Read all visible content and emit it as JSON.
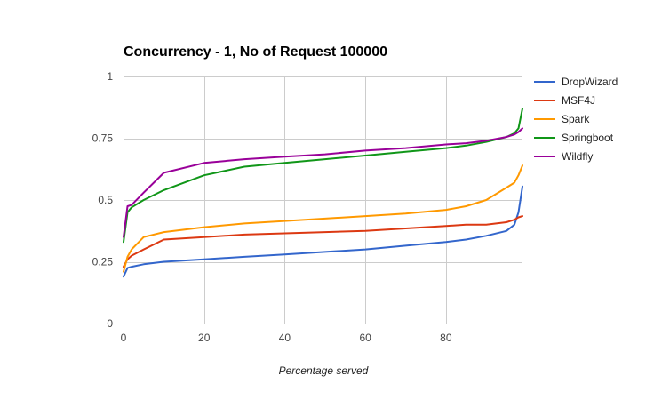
{
  "chart_data": {
    "type": "line",
    "title": "Concurrency - 1, No of Request 100000",
    "xlabel": "Percentage served",
    "ylabel": "",
    "xlim": [
      0,
      99
    ],
    "ylim": [
      0,
      1
    ],
    "x_ticks": [
      "0",
      "20",
      "40",
      "60",
      "80"
    ],
    "y_ticks": [
      "0",
      "0.25",
      "0.5",
      "0.75",
      "1"
    ],
    "x_tick_values": [
      0,
      20,
      40,
      60,
      80
    ],
    "y_tick_values": [
      0,
      0.25,
      0.5,
      0.75,
      1
    ],
    "grid": true,
    "legend_position": "right",
    "x": [
      0,
      1,
      2,
      5,
      10,
      20,
      30,
      40,
      50,
      60,
      70,
      80,
      85,
      90,
      95,
      97,
      98,
      99
    ],
    "series": [
      {
        "name": "DropWizard",
        "color": "#3366cc",
        "values": [
          0.19,
          0.225,
          0.23,
          0.24,
          0.25,
          0.26,
          0.27,
          0.28,
          0.29,
          0.3,
          0.315,
          0.33,
          0.34,
          0.355,
          0.375,
          0.4,
          0.45,
          0.555
        ]
      },
      {
        "name": "MSF4J",
        "color": "#dc3912",
        "values": [
          0.23,
          0.26,
          0.275,
          0.3,
          0.34,
          0.35,
          0.36,
          0.365,
          0.37,
          0.375,
          0.385,
          0.395,
          0.4,
          0.4,
          0.41,
          0.42,
          0.43,
          0.435
        ]
      },
      {
        "name": "Spark",
        "color": "#ff9900",
        "values": [
          0.21,
          0.27,
          0.3,
          0.35,
          0.37,
          0.39,
          0.405,
          0.415,
          0.425,
          0.435,
          0.445,
          0.46,
          0.475,
          0.5,
          0.55,
          0.57,
          0.6,
          0.64
        ]
      },
      {
        "name": "Springboot",
        "color": "#109618",
        "values": [
          0.33,
          0.45,
          0.47,
          0.5,
          0.54,
          0.6,
          0.635,
          0.65,
          0.665,
          0.68,
          0.695,
          0.71,
          0.72,
          0.735,
          0.755,
          0.77,
          0.79,
          0.87
        ]
      },
      {
        "name": "Wildfly",
        "color": "#990099",
        "values": [
          0.35,
          0.475,
          0.48,
          0.53,
          0.61,
          0.65,
          0.665,
          0.675,
          0.685,
          0.7,
          0.71,
          0.725,
          0.73,
          0.74,
          0.755,
          0.765,
          0.775,
          0.79
        ]
      }
    ]
  }
}
